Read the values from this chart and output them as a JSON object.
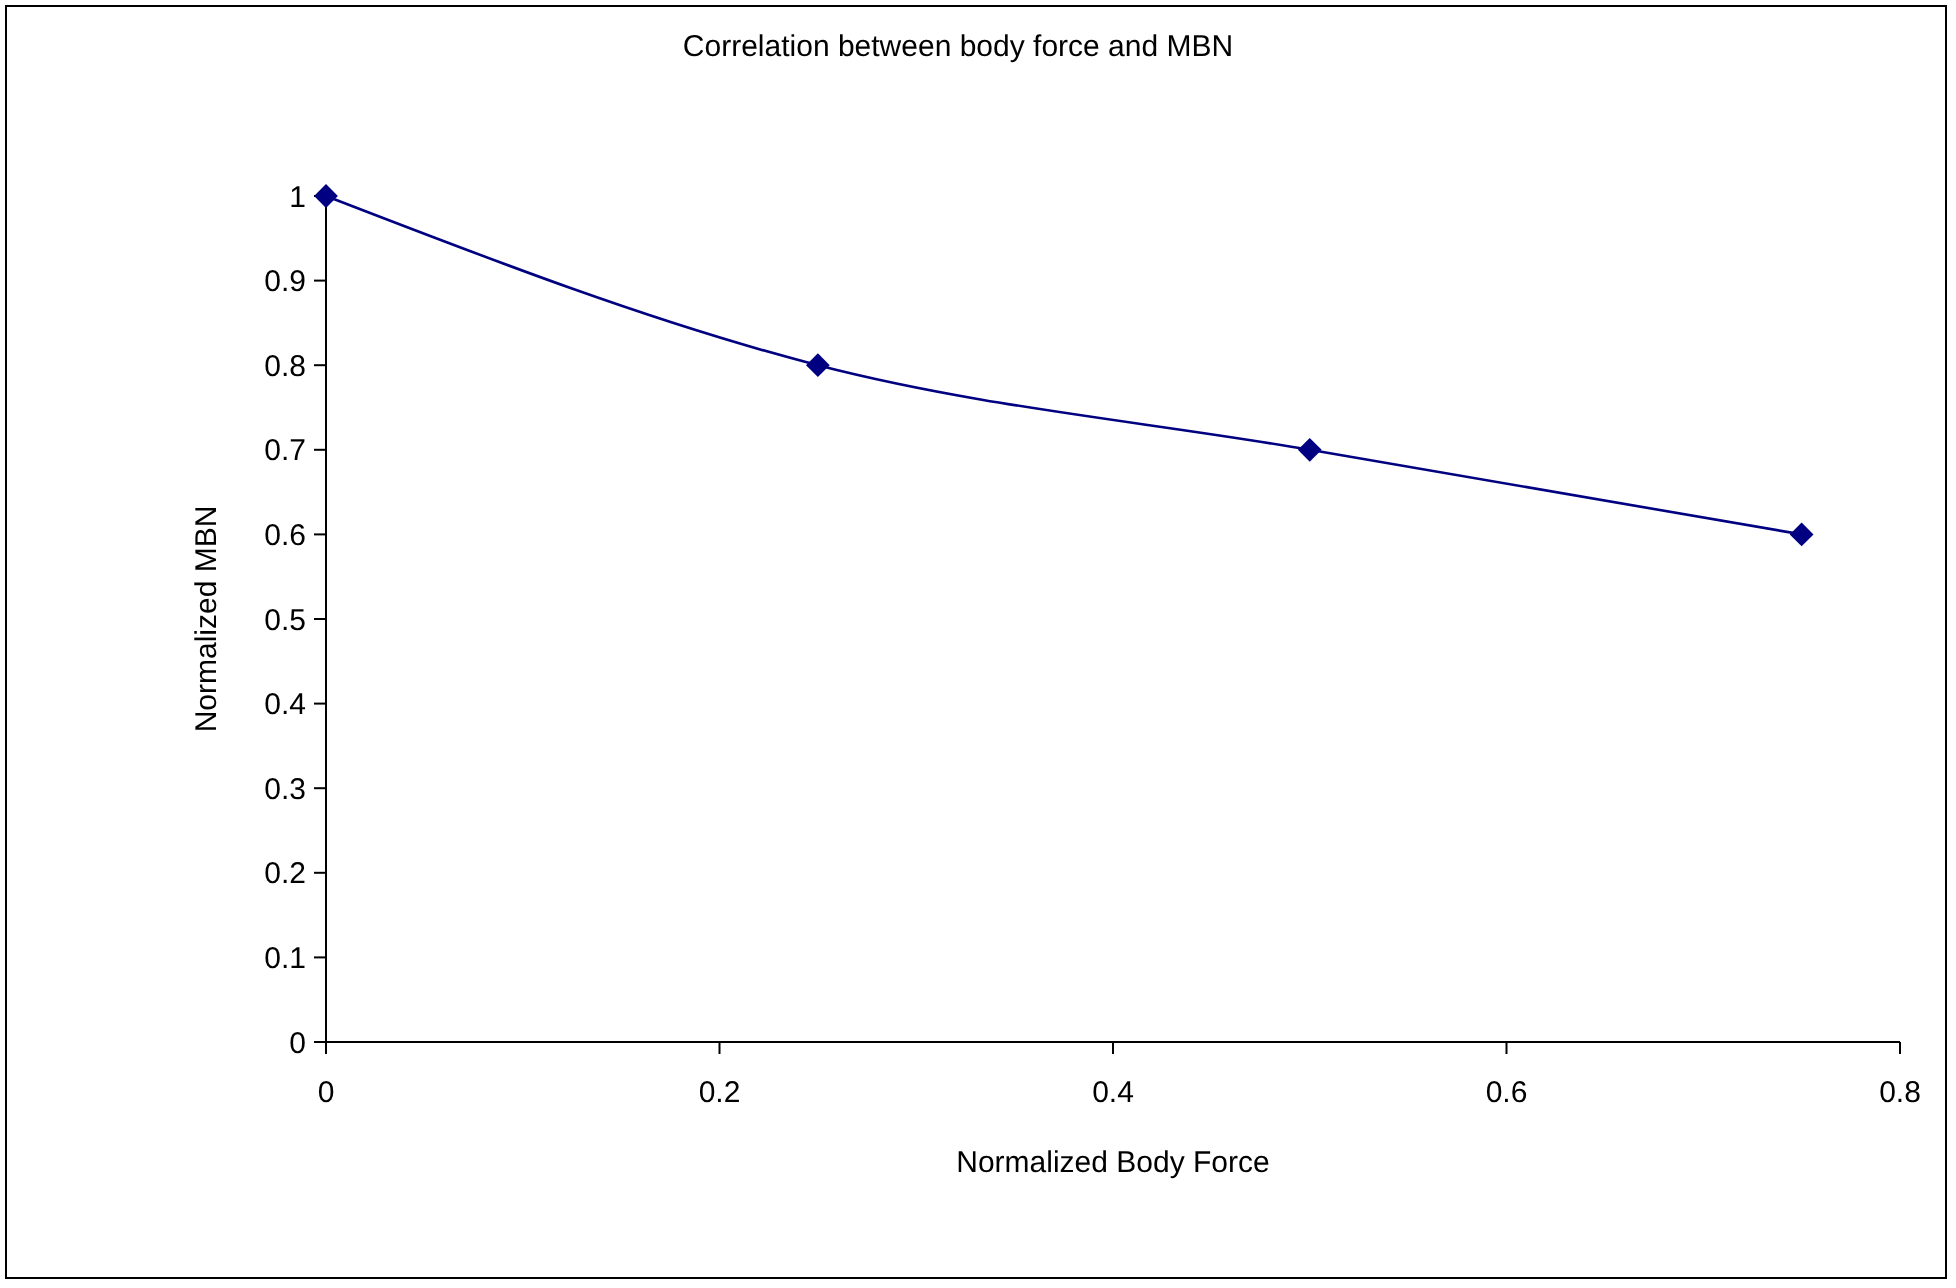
{
  "chart_data": {
    "type": "line",
    "title": "Correlation between body force and MBN",
    "xlabel": "Normalized Body Force",
    "ylabel": "Normalized MBN",
    "x": [
      0,
      0.25,
      0.5,
      0.75
    ],
    "series": [
      {
        "color": "#000080",
        "values": [
          1,
          0.8,
          0.7,
          0.6
        ]
      }
    ],
    "xlim": [
      0,
      0.8
    ],
    "xticks": [
      0,
      0.2,
      0.4,
      0.6,
      0.8
    ],
    "ylim": [
      0,
      1
    ],
    "yticks": [
      0,
      0.1,
      0.2,
      0.3,
      0.4,
      0.5,
      0.6,
      0.7,
      0.8,
      0.9,
      1
    ],
    "marker": "diamond",
    "line_style": "solid",
    "grid": false
  }
}
